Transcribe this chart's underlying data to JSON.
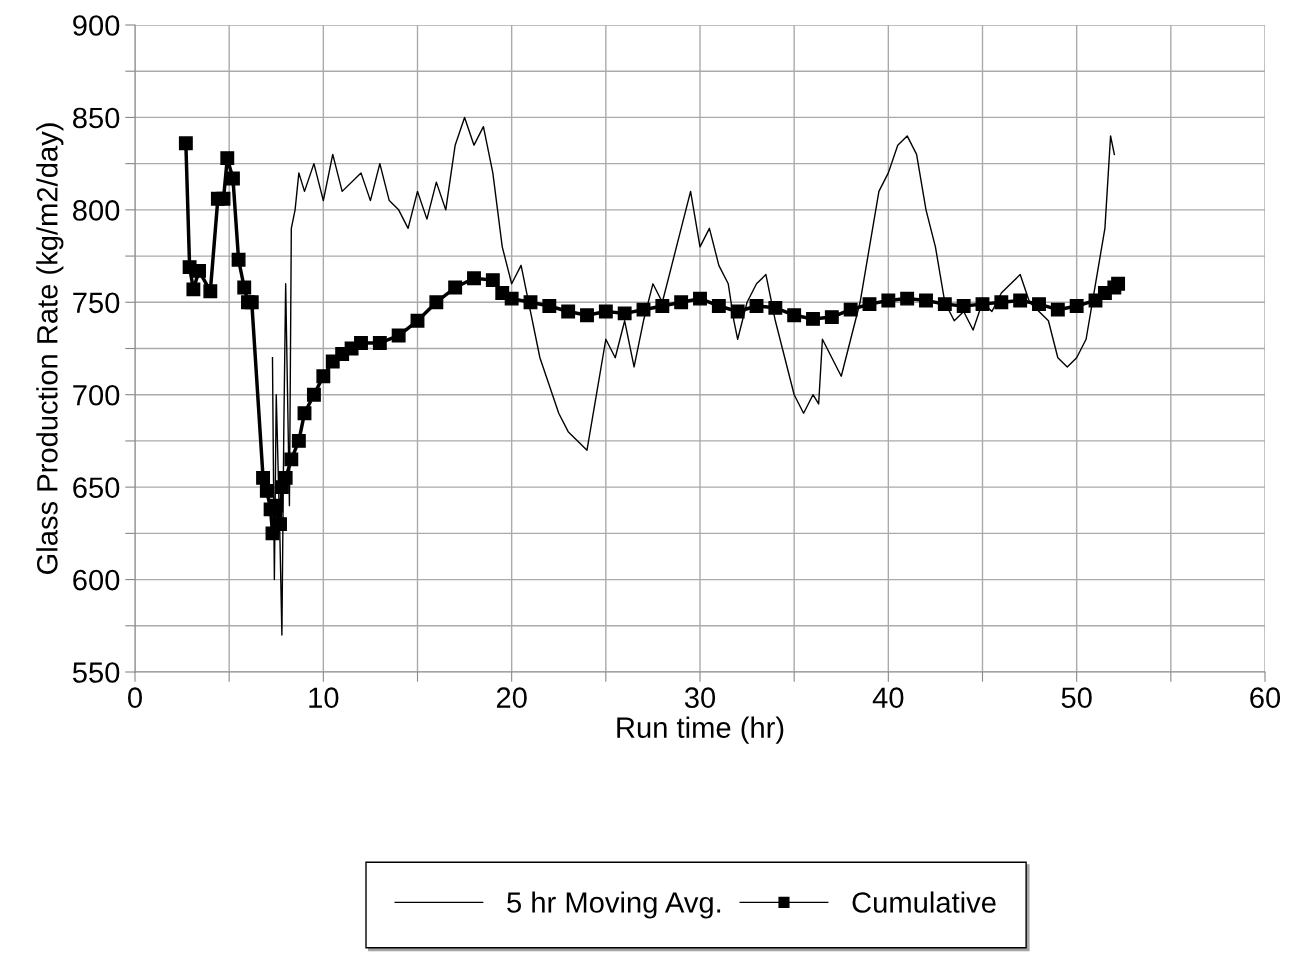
{
  "chart_data": {
    "type": "line",
    "xlabel": "Run time (hr)",
    "ylabel": "Glass Production Rate (kg/m2/day)",
    "xlim": [
      0,
      60
    ],
    "ylim": [
      550,
      900
    ],
    "xticks": [
      0,
      {
        "value": 5,
        "label": null
      },
      10,
      {
        "value": 15,
        "label": null
      },
      20,
      {
        "value": 25,
        "label": null
      },
      30,
      {
        "value": 35,
        "label": null
      },
      40,
      {
        "value": 45,
        "label": null
      },
      50,
      {
        "value": 55,
        "label": null
      },
      60
    ],
    "yticks": [
      550,
      {
        "value": 575,
        "label": null
      },
      600,
      {
        "value": 625,
        "label": null
      },
      650,
      {
        "value": 675,
        "label": null
      },
      700,
      {
        "value": 725,
        "label": null
      },
      750,
      {
        "value": 775,
        "label": null
      },
      800,
      {
        "value": 825,
        "label": null
      },
      850,
      {
        "value": 875,
        "label": null
      },
      900
    ],
    "grid": true,
    "legend": "bottom",
    "series": [
      {
        "name": "5 hr Moving Avg.",
        "color": "#000000",
        "marker": "none",
        "x": [
          7.3,
          7.4,
          7.5,
          7.7,
          7.8,
          7.9,
          8.0,
          8.2,
          8.3,
          8.5,
          8.7,
          9,
          9.5,
          10,
          10.5,
          11,
          12,
          12.5,
          13,
          13.5,
          14,
          14.5,
          15,
          15.5,
          16,
          16.5,
          17,
          17.5,
          18,
          18.5,
          19,
          19.5,
          20,
          20.5,
          21,
          21.5,
          22,
          22.5,
          23,
          23.5,
          24,
          24.5,
          25,
          25.5,
          26,
          26.5,
          27,
          27.5,
          28,
          28.5,
          29,
          29.5,
          30,
          30.5,
          31,
          31.5,
          31.8,
          32,
          32.5,
          33,
          33.5,
          34,
          34.5,
          35,
          35.5,
          36,
          36.3,
          36.5,
          37,
          37.5,
          38,
          38.5,
          39,
          39.5,
          40,
          40.5,
          41,
          41.5,
          42,
          42.5,
          43,
          43.5,
          44,
          44.5,
          45,
          45.5,
          46,
          46.5,
          47,
          47.5,
          48,
          48.5,
          49,
          49.5,
          50,
          50.5,
          51,
          51.5,
          51.8,
          52
        ],
        "values": [
          720,
          600,
          700,
          620,
          570,
          680,
          760,
          640,
          790,
          800,
          820,
          810,
          825,
          805,
          830,
          810,
          820,
          805,
          825,
          805,
          800,
          790,
          810,
          795,
          815,
          800,
          835,
          850,
          835,
          845,
          820,
          780,
          760,
          770,
          745,
          720,
          705,
          690,
          680,
          675,
          670,
          700,
          730,
          720,
          740,
          715,
          740,
          760,
          750,
          770,
          790,
          810,
          780,
          790,
          770,
          760,
          740,
          730,
          750,
          760,
          765,
          740,
          720,
          700,
          690,
          700,
          695,
          730,
          720,
          710,
          730,
          750,
          780,
          810,
          820,
          835,
          840,
          830,
          800,
          780,
          750,
          740,
          745,
          735,
          750,
          745,
          755,
          760,
          765,
          750,
          745,
          740,
          720,
          715,
          720,
          730,
          760,
          790,
          840,
          830
        ]
      },
      {
        "name": "Cumulative",
        "color": "#000000",
        "marker": "square",
        "x": [
          2.7,
          2.9,
          3.1,
          3.4,
          4,
          4.4,
          4.7,
          4.9,
          5.2,
          5.5,
          5.8,
          6.0,
          6.2,
          6.8,
          7,
          7.2,
          7.3,
          7.5,
          7.7,
          7.8,
          8,
          8.3,
          8.7,
          9,
          9.5,
          10,
          10.5,
          11,
          11.5,
          12,
          13,
          14,
          15,
          16,
          17,
          18,
          19,
          19.5,
          20,
          21,
          22,
          23,
          24,
          25,
          26,
          27,
          28,
          29,
          30,
          31,
          32,
          33,
          34,
          35,
          36,
          37,
          38,
          39,
          40,
          41,
          42,
          43,
          44,
          45,
          46,
          47,
          48,
          49,
          50,
          51,
          51.5,
          52,
          52.2
        ],
        "values": [
          836,
          769,
          757,
          767,
          756,
          806,
          806,
          828,
          817,
          773,
          758,
          750,
          750,
          655,
          648,
          638,
          625,
          640,
          630,
          650,
          655,
          665,
          675,
          690,
          700,
          710,
          718,
          722,
          725,
          728,
          728,
          732,
          740,
          750,
          758,
          763,
          762,
          755,
          752,
          750,
          748,
          745,
          743,
          745,
          744,
          746,
          748,
          750,
          752,
          748,
          745,
          748,
          747,
          743,
          741,
          742,
          746,
          749,
          751,
          752,
          751,
          749,
          748,
          749,
          750,
          751,
          749,
          746,
          748,
          751,
          755,
          758,
          760
        ]
      }
    ]
  }
}
